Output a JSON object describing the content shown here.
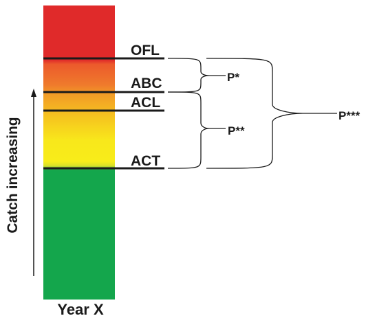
{
  "levels": {
    "ofl": "OFL",
    "abc": "ABC",
    "acl": "ACL",
    "act": "ACT"
  },
  "braces": {
    "p1": "P*",
    "p2": "P**",
    "p3": "P***"
  },
  "axis": {
    "ylabel": "Catch increasing",
    "xlabel": "Year X"
  },
  "colors": {
    "red": "#e02a2a",
    "orange": "#ef7a2c",
    "yellow": "#f8ec1a",
    "green": "#14a64c",
    "ink": "#1a1a1a"
  }
}
